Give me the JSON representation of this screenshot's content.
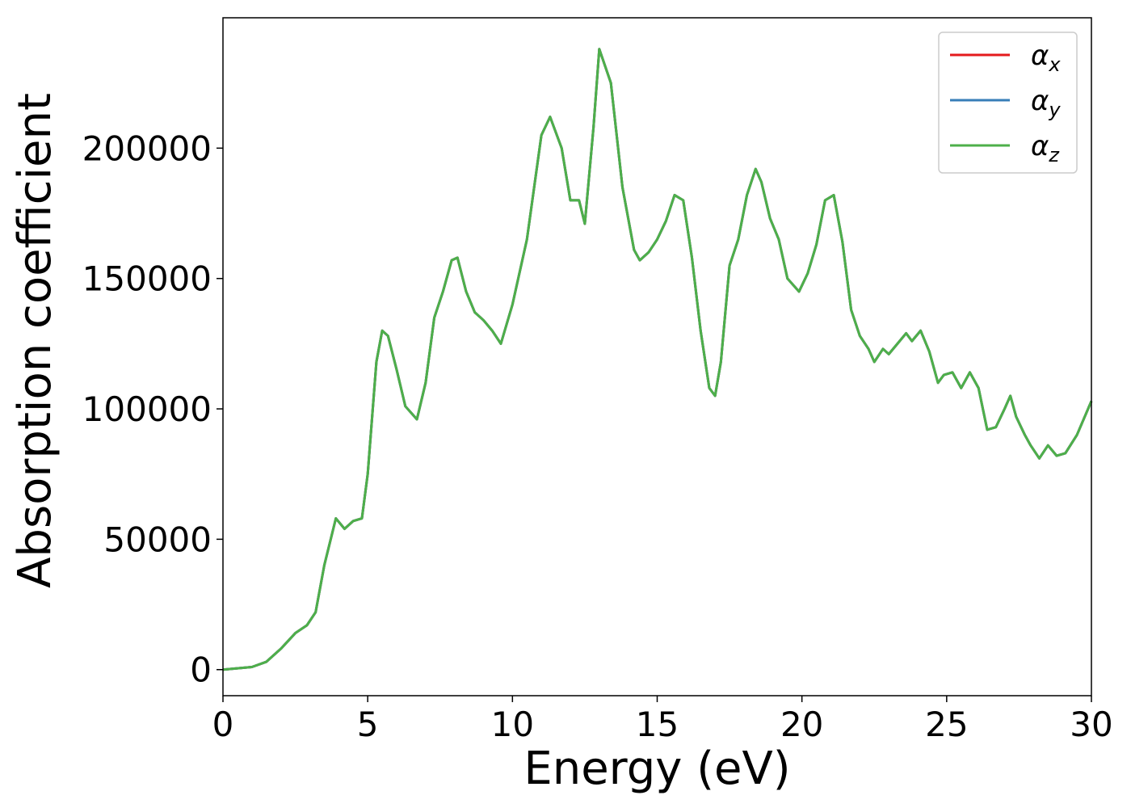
{
  "chart_data": {
    "type": "line",
    "title": "",
    "xlabel": "Energy (eV)",
    "ylabel": "Absorption coefficient",
    "xlim": [
      0,
      30
    ],
    "ylim": [
      -10000,
      250000
    ],
    "xticks": [
      0,
      5,
      10,
      15,
      20,
      25,
      30
    ],
    "yticks": [
      0,
      50000,
      100000,
      150000,
      200000
    ],
    "xtick_labels": [
      "0",
      "5",
      "10",
      "15",
      "20",
      "25",
      "30"
    ],
    "ytick_labels": [
      "0",
      "50000",
      "100000",
      "150000",
      "200000"
    ],
    "grid": false,
    "legend_position": "top-right",
    "x": [
      0,
      1,
      1.5,
      2,
      2.5,
      2.9,
      3.2,
      3.5,
      3.9,
      4.2,
      4.5,
      4.8,
      5.0,
      5.3,
      5.5,
      5.7,
      6.0,
      6.3,
      6.7,
      7.0,
      7.3,
      7.6,
      7.9,
      8.1,
      8.4,
      8.7,
      9.0,
      9.3,
      9.6,
      10.0,
      10.5,
      11.0,
      11.3,
      11.7,
      12.0,
      12.3,
      12.5,
      12.8,
      13.0,
      13.4,
      13.8,
      14.2,
      14.4,
      14.7,
      15.0,
      15.3,
      15.6,
      15.9,
      16.2,
      16.5,
      16.8,
      17.0,
      17.2,
      17.5,
      17.8,
      18.1,
      18.4,
      18.6,
      18.9,
      19.2,
      19.5,
      19.9,
      20.2,
      20.5,
      20.8,
      21.1,
      21.4,
      21.7,
      22.0,
      22.3,
      22.5,
      22.8,
      23.0,
      23.3,
      23.6,
      23.8,
      24.1,
      24.4,
      24.7,
      24.9,
      25.2,
      25.5,
      25.8,
      26.1,
      26.4,
      26.7,
      27.0,
      27.2,
      27.4,
      27.7,
      27.9,
      28.2,
      28.5,
      28.8,
      29.1,
      29.5,
      30.0
    ],
    "series": [
      {
        "name": "α_x",
        "color": "#e41a1c",
        "values": [
          0,
          1000,
          3000,
          8000,
          14000,
          17000,
          22000,
          40000,
          58000,
          54000,
          57000,
          58000,
          75000,
          118000,
          130000,
          128000,
          115000,
          101000,
          96000,
          110000,
          135000,
          145000,
          157000,
          158000,
          145000,
          137000,
          134000,
          130000,
          125000,
          140000,
          165000,
          205000,
          212000,
          200000,
          180000,
          180000,
          171000,
          208000,
          238000,
          225000,
          185000,
          161000,
          157000,
          160000,
          165000,
          172000,
          182000,
          180000,
          158000,
          130000,
          108000,
          105000,
          118000,
          155000,
          165000,
          182000,
          192000,
          187000,
          173000,
          165000,
          150000,
          145000,
          152000,
          163000,
          180000,
          182000,
          164000,
          138000,
          128000,
          123000,
          118000,
          123000,
          121000,
          125000,
          129000,
          126000,
          130000,
          122000,
          110000,
          113000,
          114000,
          108000,
          114000,
          108000,
          92000,
          93000,
          100000,
          105000,
          97000,
          90000,
          86000,
          81000,
          86000,
          82000,
          83000,
          90000,
          103000
        ]
      },
      {
        "name": "α_y",
        "color": "#377eb8",
        "values": [
          0,
          1000,
          3000,
          8000,
          14000,
          17000,
          22000,
          40000,
          58000,
          54000,
          57000,
          58000,
          75000,
          118000,
          130000,
          128000,
          115000,
          101000,
          96000,
          110000,
          135000,
          145000,
          157000,
          158000,
          145000,
          137000,
          134000,
          130000,
          125000,
          140000,
          165000,
          205000,
          212000,
          200000,
          180000,
          180000,
          171000,
          208000,
          238000,
          225000,
          185000,
          161000,
          157000,
          160000,
          165000,
          172000,
          182000,
          180000,
          158000,
          130000,
          108000,
          105000,
          118000,
          155000,
          165000,
          182000,
          192000,
          187000,
          173000,
          165000,
          150000,
          145000,
          152000,
          163000,
          180000,
          182000,
          164000,
          138000,
          128000,
          123000,
          118000,
          123000,
          121000,
          125000,
          129000,
          126000,
          130000,
          122000,
          110000,
          113000,
          114000,
          108000,
          114000,
          108000,
          92000,
          93000,
          100000,
          105000,
          97000,
          90000,
          86000,
          81000,
          86000,
          82000,
          83000,
          90000,
          103000
        ]
      },
      {
        "name": "α_z",
        "color": "#4daf4a",
        "values": [
          0,
          1000,
          3000,
          8000,
          14000,
          17000,
          22000,
          40000,
          58000,
          54000,
          57000,
          58000,
          75000,
          118000,
          130000,
          128000,
          115000,
          101000,
          96000,
          110000,
          135000,
          145000,
          157000,
          158000,
          145000,
          137000,
          134000,
          130000,
          125000,
          140000,
          165000,
          205000,
          212000,
          200000,
          180000,
          180000,
          171000,
          208000,
          238000,
          225000,
          185000,
          161000,
          157000,
          160000,
          165000,
          172000,
          182000,
          180000,
          158000,
          130000,
          108000,
          105000,
          118000,
          155000,
          165000,
          182000,
          192000,
          187000,
          173000,
          165000,
          150000,
          145000,
          152000,
          163000,
          180000,
          182000,
          164000,
          138000,
          128000,
          123000,
          118000,
          123000,
          121000,
          125000,
          129000,
          126000,
          130000,
          122000,
          110000,
          113000,
          114000,
          108000,
          114000,
          108000,
          92000,
          93000,
          100000,
          105000,
          97000,
          90000,
          86000,
          81000,
          86000,
          82000,
          83000,
          90000,
          103000
        ]
      }
    ],
    "legend": [
      {
        "symbol": "α",
        "sub": "x",
        "color": "#e41a1c"
      },
      {
        "symbol": "α",
        "sub": "y",
        "color": "#377eb8"
      },
      {
        "symbol": "α",
        "sub": "z",
        "color": "#4daf4a"
      }
    ]
  }
}
